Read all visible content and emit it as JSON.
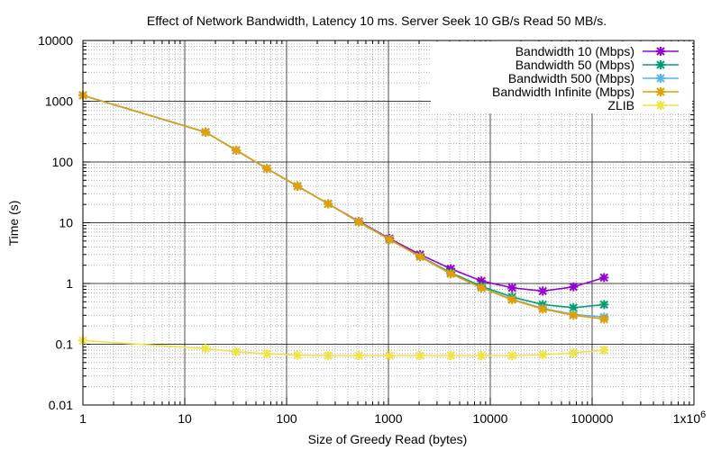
{
  "chart_data": {
    "type": "line",
    "title": "Effect of Network Bandwidth, Latency 10 ms. Server Seek 10 GB/s Read 50 MB/s.",
    "xlabel": "Size of Greedy Read (bytes)",
    "ylabel": "Time (s)",
    "x_scale": "log",
    "y_scale": "log",
    "xlim": [
      1,
      1000000
    ],
    "ylim": [
      0.01,
      10000
    ],
    "grid": true,
    "legend_position": "top-right",
    "x_ticks": [
      {
        "value": 1,
        "label": "1"
      },
      {
        "value": 10,
        "label": "10"
      },
      {
        "value": 100,
        "label": "100"
      },
      {
        "value": 1000,
        "label": "1000"
      },
      {
        "value": 10000,
        "label": "10000"
      },
      {
        "value": 100000,
        "label": "100000"
      },
      {
        "value": 1000000,
        "label": "1x10",
        "sup": "6"
      }
    ],
    "y_ticks": [
      {
        "value": 0.01,
        "label": "0.01"
      },
      {
        "value": 0.1,
        "label": "0.1"
      },
      {
        "value": 1,
        "label": "1"
      },
      {
        "value": 10,
        "label": "10"
      },
      {
        "value": 100,
        "label": "100"
      },
      {
        "value": 1000,
        "label": "1000"
      },
      {
        "value": 10000,
        "label": "10000"
      }
    ],
    "x": [
      1,
      16,
      32,
      64,
      128,
      256,
      512,
      1024,
      2048,
      4096,
      8192,
      16384,
      32768,
      65536,
      131072
    ],
    "series": [
      {
        "name": "Bandwidth 10 (Mbps)",
        "color": "#9400d3",
        "values": [
          1250,
          310,
          156,
          78,
          40,
          20.5,
          10.5,
          5.5,
          3.0,
          1.75,
          1.1,
          0.85,
          0.75,
          0.88,
          1.25
        ]
      },
      {
        "name": "Bandwidth 50 (Mbps)",
        "color": "#009e73",
        "values": [
          1250,
          310,
          156,
          78,
          40,
          20.5,
          10.3,
          5.3,
          2.8,
          1.5,
          0.9,
          0.6,
          0.45,
          0.4,
          0.45
        ]
      },
      {
        "name": "Bandwidth 500 (Mbps)",
        "color": "#56b4e9",
        "values": [
          1250,
          310,
          156,
          78,
          40,
          20.5,
          10.3,
          5.3,
          2.75,
          1.45,
          0.85,
          0.55,
          0.39,
          0.31,
          0.28
        ]
      },
      {
        "name": "Bandwidth Infinite (Mbps)",
        "color": "#e69f00",
        "values": [
          1250,
          310,
          156,
          78,
          40,
          20.5,
          10.3,
          5.3,
          2.75,
          1.45,
          0.85,
          0.54,
          0.38,
          0.3,
          0.26
        ]
      },
      {
        "name": "ZLIB",
        "color": "#f0e442",
        "values": [
          0.115,
          0.085,
          0.075,
          0.07,
          0.066,
          0.065,
          0.065,
          0.065,
          0.065,
          0.065,
          0.065,
          0.065,
          0.067,
          0.072,
          0.08
        ]
      }
    ]
  }
}
